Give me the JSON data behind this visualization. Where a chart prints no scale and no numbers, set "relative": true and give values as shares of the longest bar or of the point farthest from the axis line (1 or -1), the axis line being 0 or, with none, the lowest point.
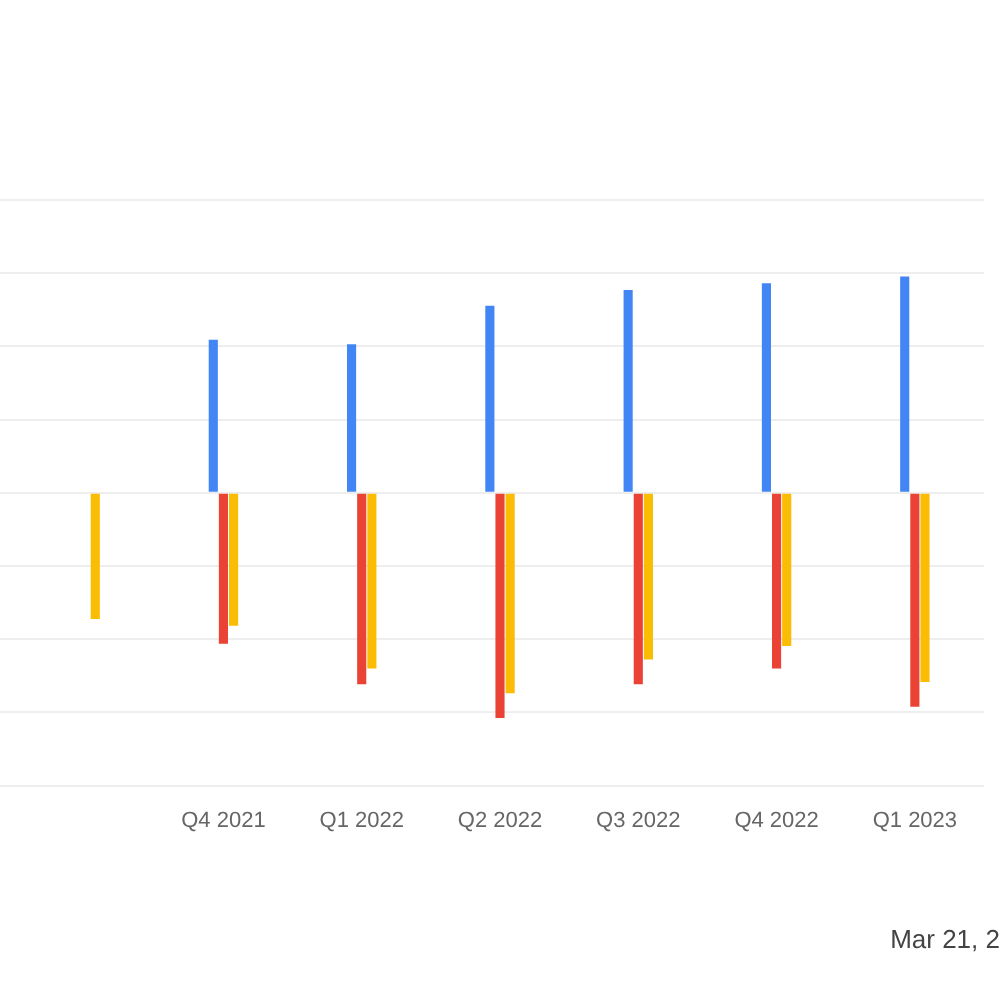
{
  "chart_data": {
    "type": "bar",
    "relative": true,
    "grid": "y",
    "categories": [
      null,
      "Q4 2021",
      "Q1 2022",
      "Q2 2022",
      "Q3 2022",
      "Q4 2022",
      "Q1 2023"
    ],
    "series": [
      {
        "color": "#4285f4",
        "values": [
          null,
          0.68,
          0.66,
          0.83,
          0.9,
          0.93,
          0.96
        ]
      },
      {
        "color": "#ea4335",
        "values": [
          null,
          -0.67,
          -0.85,
          -1,
          -0.85,
          -0.78,
          -0.95
        ]
      },
      {
        "color": "#fbbc04",
        "values": [
          -0.56,
          -0.59,
          -0.78,
          -0.89,
          -0.74,
          -0.68,
          -0.84
        ]
      }
    ],
    "annotations": [
      "Mar 21, 2"
    ]
  }
}
